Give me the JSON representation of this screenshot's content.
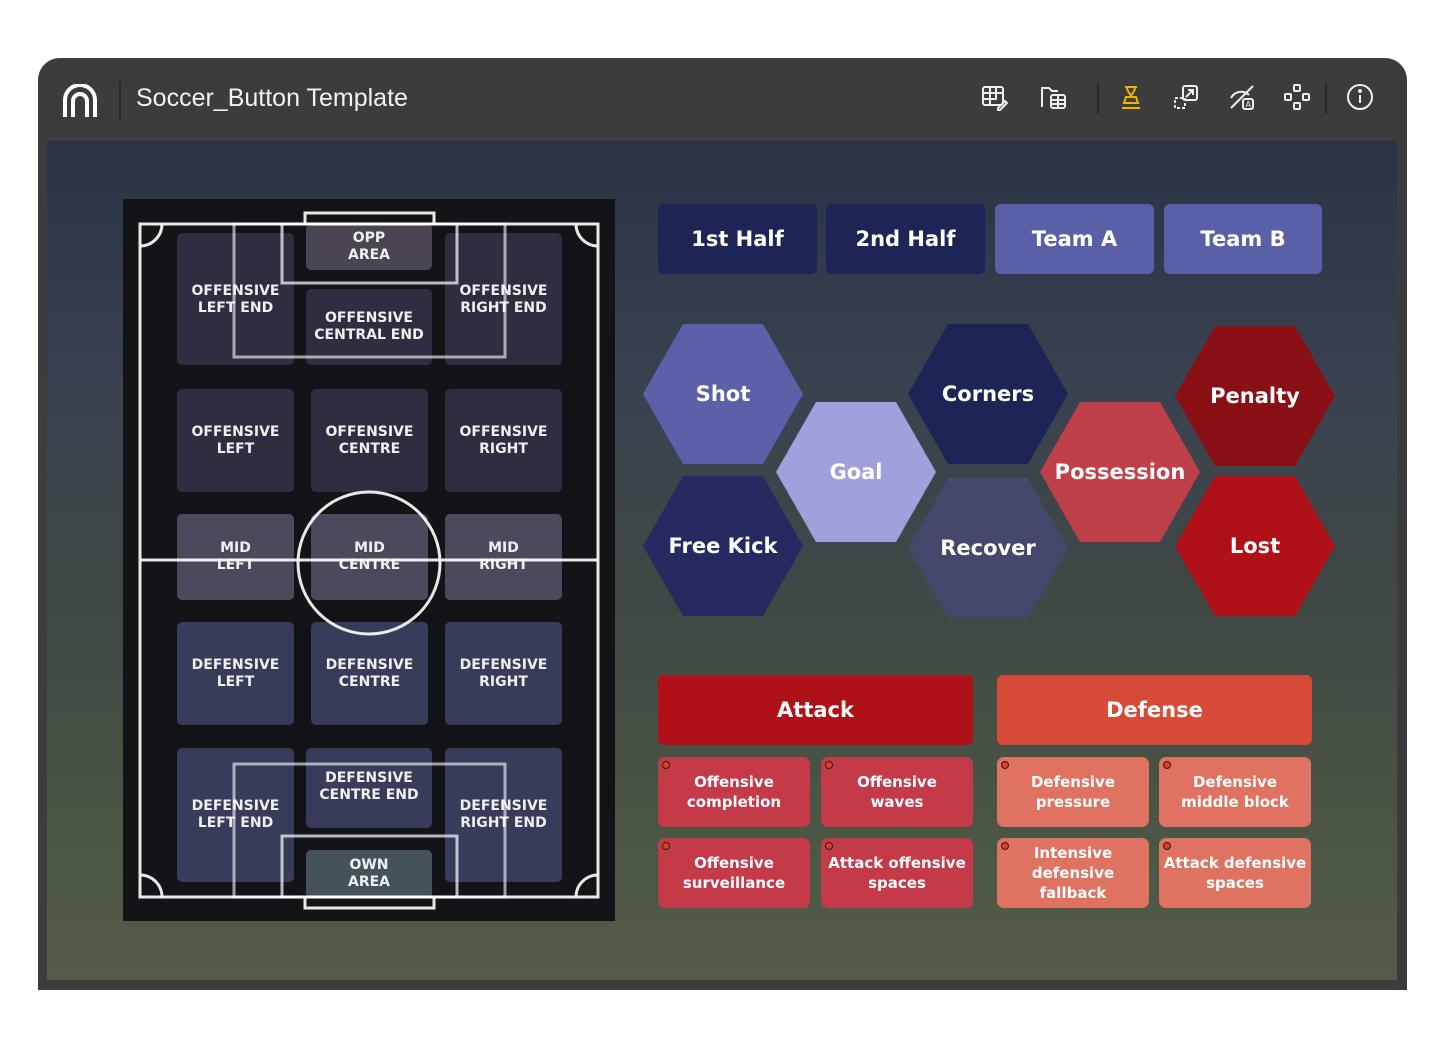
{
  "window": {
    "title": "Soccer_Button Template"
  },
  "toolbar": {
    "icons": [
      "table-edit-icon",
      "folder-table-icon",
      "stamp-icon",
      "resize-icon",
      "hide-label-icon",
      "layout-nodes-icon",
      "info-icon"
    ],
    "active_color": "#f0b400"
  },
  "pitch": {
    "zones": {
      "opp_area": "OPP\nAREA",
      "off_left_end": "OFFENSIVE\nLEFT END",
      "off_central_end": "OFFENSIVE\nCENTRAL END",
      "off_right_end": "OFFENSIVE\nRIGHT END",
      "off_left": "OFFENSIVE\nLEFT",
      "off_centre": "OFFENSIVE\nCENTRE",
      "off_right": "OFFENSIVE\nRIGHT",
      "mid_left": "MID\nLEFT",
      "mid_centre": "MID\nCENTRE",
      "mid_right": "MID\nRIGHT",
      "def_left": "DEFENSIVE\nLEFT",
      "def_centre": "DEFENSIVE\nCENTRE",
      "def_right": "DEFENSIVE\nRIGHT",
      "def_left_end": "DEFENSIVE\nLEFT END",
      "def_centre_end": "DEFENSIVE\nCENTRE END",
      "def_right_end": "DEFENSIVE\nRIGHT END",
      "own_area": "OWN\nAREA"
    }
  },
  "filters": {
    "half1": "1st Half",
    "half2": "2nd Half",
    "teamA": "Team A",
    "teamB": "Team B"
  },
  "events": {
    "shot": "Shot",
    "goal": "Goal",
    "free_kick": "Free Kick",
    "corners": "Corners",
    "recover": "Recover",
    "possession": "Possession",
    "penalty": "Penalty",
    "lost": "Lost"
  },
  "attack": {
    "label": "Attack",
    "items": [
      "Offensive completion",
      "Offensive waves",
      "Offensive surveillance",
      "Attack offensive spaces"
    ]
  },
  "defense": {
    "label": "Defense",
    "items": [
      "Defensive pressure",
      "Defensive middle block",
      "Intensive defensive fallback",
      "Attack defensive spaces"
    ]
  },
  "colors": {
    "navy": "#1e2456",
    "periwinkle": "#5b60a8",
    "attack": "#b01018",
    "defense": "#d84a38"
  }
}
